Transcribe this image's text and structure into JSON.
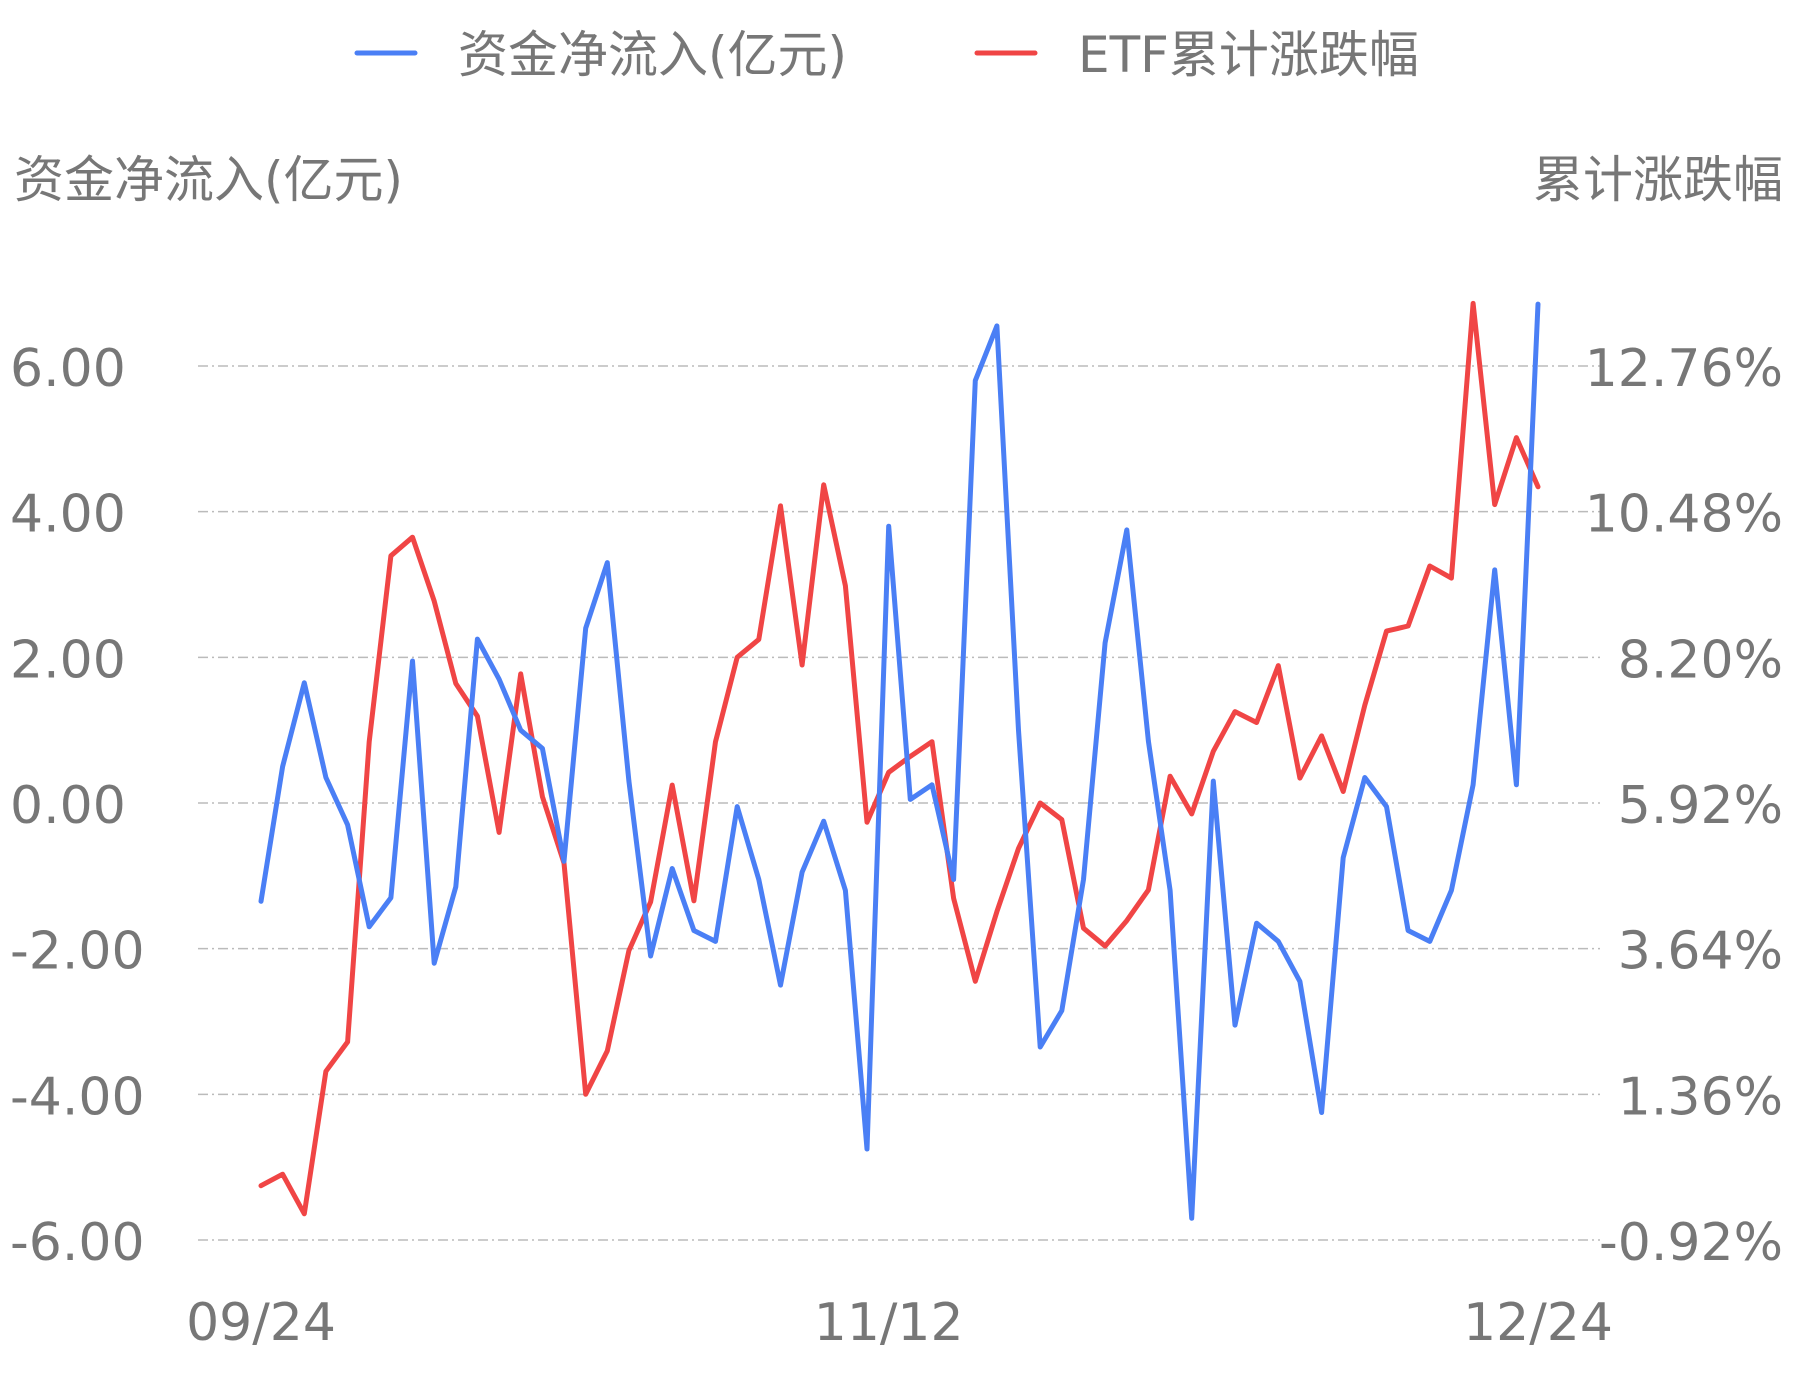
{
  "chart_data": {
    "type": "line",
    "legend": {
      "position": "top-center",
      "entries": [
        {
          "name": "资金净流入(亿元)",
          "color": "#4a7ff5"
        },
        {
          "name": "ETF累计涨跌幅",
          "color": "#f04545"
        }
      ]
    },
    "y_left": {
      "title": "资金净流入(亿元)",
      "ticks": [
        "6.00",
        "4.00",
        "2.00",
        "0.00",
        "-2.00",
        "-4.00",
        "-6.00"
      ],
      "min": -6,
      "max": 6
    },
    "y_right": {
      "title": "累计涨跌幅",
      "ticks": [
        "12.76%",
        "10.48%",
        "8.20%",
        "5.92%",
        "3.64%",
        "1.36%",
        "-0.92%"
      ],
      "min": -0.92,
      "max": 12.76
    },
    "x_ticks": [
      {
        "index": 0,
        "label": "09/24"
      },
      {
        "index": 29,
        "label": "11/12"
      },
      {
        "index": 59,
        "label": "12/24"
      }
    ],
    "grid": "horizontal-dashed",
    "series": [
      {
        "name": "资金净流入(亿元)",
        "color": "#4a7ff5",
        "axis": "left",
        "values": [
          -1.35,
          0.5,
          1.65,
          0.35,
          -0.3,
          -1.7,
          -1.3,
          1.95,
          -2.2,
          -1.15,
          2.25,
          1.7,
          1.0,
          0.75,
          -0.8,
          2.4,
          3.3,
          0.3,
          -2.1,
          -0.9,
          -1.75,
          -1.9,
          -0.05,
          -1.05,
          -2.5,
          -0.95,
          -0.25,
          -1.2,
          -4.75,
          3.8,
          0.05,
          0.25,
          -1.05,
          5.8,
          6.55,
          1.0,
          -3.35,
          -2.85,
          -1.05,
          2.2,
          3.75,
          0.85,
          -1.2,
          -5.7,
          0.3,
          -3.05,
          -1.65,
          -1.9,
          -2.45,
          -4.25,
          -0.75,
          0.35,
          -0.05,
          -1.75,
          -1.9,
          -1.2,
          0.25,
          3.2,
          0.25,
          6.85
        ]
      },
      {
        "name": "ETF累计涨跌幅",
        "color": "#f04545",
        "axis": "right",
        "values": [
          -0.07,
          0.11,
          -0.51,
          1.72,
          2.18,
          6.88,
          9.79,
          10.08,
          9.08,
          7.79,
          7.28,
          5.46,
          7.94,
          6.02,
          4.98,
          1.36,
          2.04,
          3.61,
          4.37,
          6.2,
          4.39,
          6.88,
          8.2,
          8.48,
          10.57,
          8.08,
          10.9,
          9.32,
          5.62,
          6.4,
          6.65,
          6.88,
          4.43,
          3.13,
          4.22,
          5.21,
          5.92,
          5.66,
          3.96,
          3.68,
          4.08,
          4.56,
          6.34,
          5.75,
          6.73,
          7.35,
          7.18,
          8.07,
          6.31,
          6.97,
          6.1,
          7.45,
          8.61,
          8.69,
          9.63,
          9.44,
          13.74,
          10.59,
          11.64,
          10.87
        ]
      }
    ]
  }
}
